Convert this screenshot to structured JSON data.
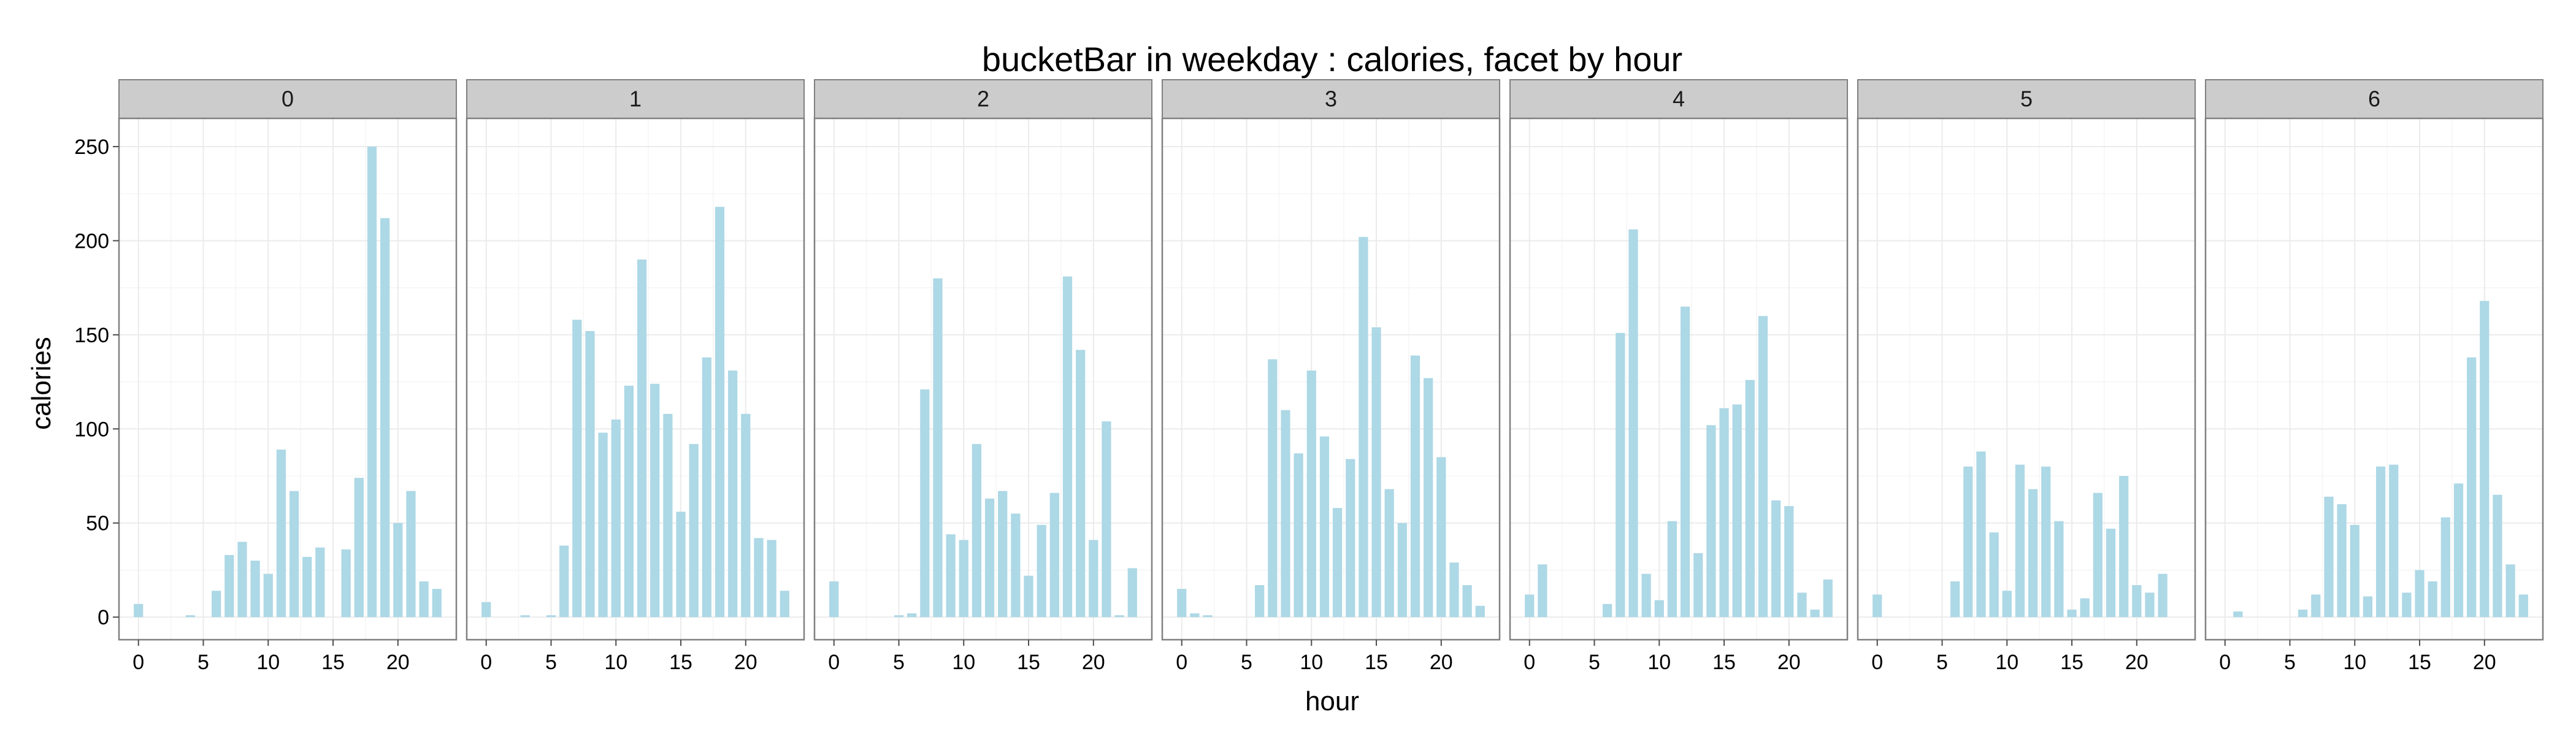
{
  "chart_data": {
    "type": "bar",
    "title": "bucketBar in weekday : calories, facet by hour",
    "xlabel": "hour",
    "ylabel": "calories",
    "facet_variable": "weekday",
    "bar_color": "#ADD8E6",
    "grid": true,
    "xlim": [
      -1.5,
      24.5
    ],
    "ylim": [
      -12,
      265
    ],
    "x_ticks": [
      0,
      5,
      10,
      15,
      20
    ],
    "y_ticks": [
      0,
      50,
      100,
      150,
      200,
      250
    ],
    "x": [
      0,
      1,
      2,
      3,
      4,
      5,
      6,
      7,
      8,
      9,
      10,
      11,
      12,
      13,
      14,
      15,
      16,
      17,
      18,
      19,
      20,
      21,
      22,
      23
    ],
    "facets": [
      {
        "label": "0",
        "values": [
          7,
          0,
          0,
          0,
          1,
          0,
          14,
          33,
          40,
          30,
          23,
          89,
          67,
          32,
          37,
          0,
          36,
          74,
          250,
          212,
          50,
          67,
          19,
          15
        ]
      },
      {
        "label": "1",
        "values": [
          8,
          0,
          0,
          1,
          0,
          1,
          38,
          158,
          152,
          98,
          105,
          123,
          190,
          124,
          108,
          56,
          92,
          138,
          218,
          131,
          108,
          42,
          41,
          14
        ]
      },
      {
        "label": "2",
        "values": [
          19,
          0,
          0,
          0,
          0,
          1,
          2,
          121,
          180,
          44,
          41,
          92,
          63,
          67,
          55,
          22,
          49,
          66,
          181,
          142,
          41,
          104,
          1,
          26
        ]
      },
      {
        "label": "3",
        "values": [
          15,
          2,
          1,
          0,
          0,
          0,
          17,
          137,
          110,
          87,
          131,
          96,
          58,
          84,
          202,
          154,
          68,
          50,
          139,
          127,
          85,
          29,
          17,
          6
        ]
      },
      {
        "label": "4",
        "values": [
          12,
          28,
          0,
          0,
          0,
          0,
          7,
          151,
          206,
          23,
          9,
          51,
          165,
          34,
          102,
          111,
          113,
          126,
          160,
          62,
          59,
          13,
          4,
          20
        ]
      },
      {
        "label": "5",
        "values": [
          12,
          0,
          0,
          0,
          0,
          0,
          19,
          80,
          88,
          45,
          14,
          81,
          68,
          80,
          51,
          4,
          10,
          66,
          47,
          75,
          17,
          13,
          23,
          0
        ]
      },
      {
        "label": "6",
        "values": [
          0,
          3,
          0,
          0,
          0,
          0,
          4,
          12,
          64,
          60,
          49,
          11,
          80,
          81,
          13,
          25,
          19,
          53,
          71,
          138,
          168,
          65,
          28,
          12
        ]
      }
    ]
  }
}
